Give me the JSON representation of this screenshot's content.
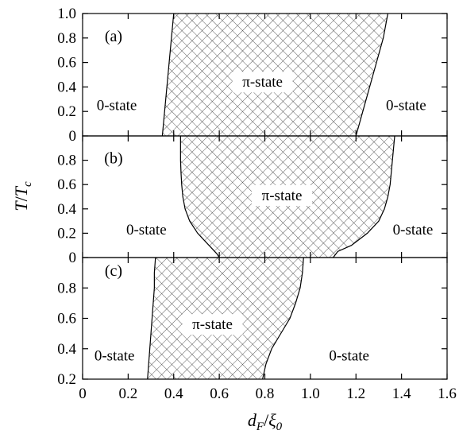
{
  "chart_data": {
    "type": "area",
    "xlabel": {
      "main": "d",
      "sub": "F",
      "sep": "/",
      "main2": "ξ",
      "sub2": "0"
    },
    "ylabel": {
      "main": "T",
      "sep": "/",
      "main2": "T",
      "sub2": "c"
    },
    "x_ticks": [
      "0",
      "0.2",
      "0.4",
      "0.6",
      "0.8",
      "1.0",
      "1.2",
      "1.4",
      "1.6"
    ],
    "x_tick_values": [
      0,
      0.2,
      0.4,
      0.6,
      0.8,
      1.0,
      1.2,
      1.4,
      1.6
    ],
    "xlim": [
      0,
      1.6
    ],
    "fill_pattern": "crosshatch",
    "panels": [
      {
        "tag": "(a)",
        "ylim": [
          0,
          1.0
        ],
        "y_ticks": [
          "0",
          "0.2",
          "0.4",
          "0.6",
          "0.8",
          "1.0"
        ],
        "y_tick_values": [
          0,
          0.2,
          0.4,
          0.6,
          0.8,
          1.0
        ],
        "left_boundary": [
          [
            0.35,
            0.0
          ],
          [
            0.355,
            0.1
          ],
          [
            0.36,
            0.2
          ],
          [
            0.365,
            0.3
          ],
          [
            0.37,
            0.4
          ],
          [
            0.375,
            0.5
          ],
          [
            0.38,
            0.6
          ],
          [
            0.385,
            0.7
          ],
          [
            0.39,
            0.8
          ],
          [
            0.395,
            0.9
          ],
          [
            0.4,
            1.0
          ]
        ],
        "right_boundary": [
          [
            1.2,
            0.0
          ],
          [
            1.215,
            0.1
          ],
          [
            1.23,
            0.2
          ],
          [
            1.245,
            0.3
          ],
          [
            1.26,
            0.4
          ],
          [
            1.275,
            0.5
          ],
          [
            1.29,
            0.6
          ],
          [
            1.305,
            0.7
          ],
          [
            1.32,
            0.8
          ],
          [
            1.33,
            0.9
          ],
          [
            1.34,
            1.0
          ]
        ],
        "labels": [
          {
            "text": "π-state",
            "x": 0.79,
            "y": 0.44,
            "boxed": true
          },
          {
            "text": "0-state",
            "x": 0.15,
            "y": 0.25,
            "boxed": false
          },
          {
            "text": "0-state",
            "x": 1.42,
            "y": 0.25,
            "boxed": false
          }
        ],
        "tag_pos": [
          0.08,
          0.8
        ]
      },
      {
        "tag": "(b)",
        "ylim": [
          0,
          1.0
        ],
        "y_ticks": [
          "0",
          "0.2",
          "0.4",
          "0.6",
          "0.8"
        ],
        "y_tick_values": [
          0,
          0.2,
          0.4,
          0.6,
          0.8
        ],
        "left_boundary": [
          [
            0.6,
            0.0
          ],
          [
            0.59,
            0.03
          ],
          [
            0.555,
            0.1
          ],
          [
            0.505,
            0.2
          ],
          [
            0.47,
            0.3
          ],
          [
            0.45,
            0.4
          ],
          [
            0.44,
            0.5
          ],
          [
            0.435,
            0.6
          ],
          [
            0.432,
            0.7
          ],
          [
            0.43,
            0.8
          ],
          [
            0.43,
            0.9
          ],
          [
            0.43,
            1.0
          ]
        ],
        "right_boundary": [
          [
            1.1,
            0.0
          ],
          [
            1.12,
            0.05
          ],
          [
            1.18,
            0.1
          ],
          [
            1.25,
            0.2
          ],
          [
            1.3,
            0.3
          ],
          [
            1.325,
            0.4
          ],
          [
            1.34,
            0.5
          ],
          [
            1.35,
            0.6
          ],
          [
            1.355,
            0.7
          ],
          [
            1.36,
            0.8
          ],
          [
            1.365,
            0.9
          ],
          [
            1.37,
            1.0
          ]
        ],
        "labels": [
          {
            "text": "π-state",
            "x": 0.875,
            "y": 0.51,
            "boxed": true
          },
          {
            "text": "0-state",
            "x": 0.28,
            "y": 0.23,
            "boxed": false
          },
          {
            "text": "0-state",
            "x": 1.45,
            "y": 0.23,
            "boxed": false
          }
        ],
        "tag_pos": [
          0.08,
          0.8
        ]
      },
      {
        "tag": "(c)",
        "ylim": [
          0.2,
          1.0
        ],
        "y_ticks": [
          "0.2",
          "0.4",
          "0.6",
          "0.8"
        ],
        "y_tick_values": [
          0.2,
          0.4,
          0.6,
          0.8
        ],
        "left_boundary": [
          [
            0.285,
            0.2
          ],
          [
            0.29,
            0.3
          ],
          [
            0.295,
            0.4
          ],
          [
            0.3,
            0.5
          ],
          [
            0.305,
            0.6
          ],
          [
            0.31,
            0.7
          ],
          [
            0.315,
            0.8
          ],
          [
            0.315,
            0.9
          ],
          [
            0.32,
            1.0
          ]
        ],
        "right_boundary": [
          [
            0.79,
            0.2
          ],
          [
            0.805,
            0.3
          ],
          [
            0.83,
            0.4
          ],
          [
            0.87,
            0.5
          ],
          [
            0.91,
            0.6
          ],
          [
            0.935,
            0.7
          ],
          [
            0.955,
            0.8
          ],
          [
            0.965,
            0.9
          ],
          [
            0.97,
            1.0
          ]
        ],
        "labels": [
          {
            "text": "π-state",
            "x": 0.57,
            "y": 0.56,
            "boxed": true
          },
          {
            "text": "0-state",
            "x": 0.14,
            "y": 0.355,
            "boxed": false
          },
          {
            "text": "0-state",
            "x": 1.17,
            "y": 0.355,
            "boxed": false
          }
        ],
        "tag_pos": [
          0.08,
          0.9
        ]
      }
    ]
  }
}
